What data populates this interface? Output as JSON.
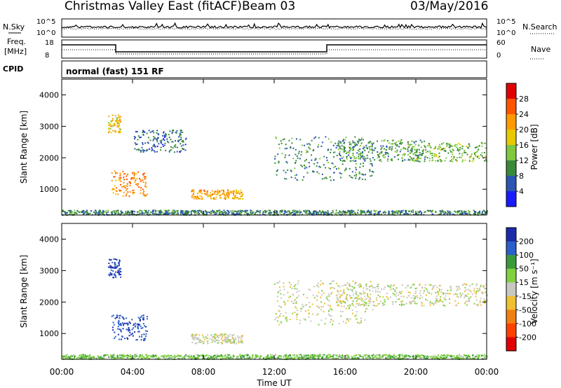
{
  "header": {
    "title": "Christmas Valley East (fitACF)",
    "beam": "Beam 03",
    "date": "03/May/2016"
  },
  "strip_panels": {
    "nsky_label": "N.Sky",
    "nsearch_label": "N.Search",
    "freq_label_1": "Freq.",
    "freq_label_2": "[MHz]",
    "nave_label": "Nave",
    "cpid_label": "CPID",
    "nsky_ticks": [
      "10^5",
      "10^0"
    ],
    "nsearch_ticks": [
      "10^5",
      "10^0"
    ],
    "freq_ticks": [
      "18",
      "8"
    ],
    "nave_ticks": [
      "60",
      "0"
    ],
    "cpid_text": "normal (fast) 151 RF"
  },
  "chart_data": [
    {
      "type": "heatmap",
      "name": "power",
      "ylabel": "Slant Range [km]",
      "yticks": [
        "4000",
        "3000",
        "2000",
        "1000"
      ],
      "ylim": [
        180,
        4500
      ],
      "xlim": [
        0,
        24
      ],
      "colorbar_label": "Power [dB]",
      "colorbar_ticks": [
        "28",
        "24",
        "20",
        "16",
        "12",
        "8",
        "4"
      ],
      "colorbar_colors": [
        "#e00000",
        "#ff5500",
        "#ff9900",
        "#e8c800",
        "#7fc840",
        "#3a8a3a",
        "#2a55b0",
        "#1a1aff"
      ],
      "regions": [
        {
          "t": [
            2.8,
            4.8
          ],
          "r": [
            800,
            1600
          ],
          "v": 24
        },
        {
          "t": [
            7.3,
            10.2
          ],
          "r": [
            700,
            1000
          ],
          "v": 22
        },
        {
          "t": [
            2.6,
            3.3
          ],
          "r": [
            2800,
            3400
          ],
          "v": 20
        },
        {
          "t": [
            12.0,
            17.6
          ],
          "r": [
            1300,
            2700
          ],
          "v": 8
        },
        {
          "t": [
            15.5,
            20.5
          ],
          "r": [
            1900,
            2600
          ],
          "v": 10
        },
        {
          "t": [
            19.5,
            24.0
          ],
          "r": [
            1900,
            2500
          ],
          "v": 12
        },
        {
          "t": [
            4.0,
            7.0
          ],
          "r": [
            2200,
            2900
          ],
          "v": 6
        },
        {
          "t": [
            0.0,
            24.0
          ],
          "r": [
            200,
            350
          ],
          "v": 8
        }
      ]
    },
    {
      "type": "heatmap",
      "name": "velocity",
      "ylabel": "Slant Range [km]",
      "xlabel": "Time UT",
      "xticks": [
        "00:00",
        "04:00",
        "08:00",
        "12:00",
        "16:00",
        "20:00",
        "00:00"
      ],
      "yticks": [
        "4000",
        "3000",
        "2000",
        "1000"
      ],
      "ylim": [
        180,
        4500
      ],
      "xlim": [
        0,
        24
      ],
      "colorbar_label": "Velocity [m s⁻¹]",
      "colorbar_ticks": [
        "200",
        "100",
        "50",
        "15",
        "-15",
        "-50",
        "-100",
        "-200"
      ],
      "colorbar_colors": [
        "#1a2aaa",
        "#2a60c8",
        "#3a9a3a",
        "#80d040",
        "#c8c8c0",
        "#f0c030",
        "#f08010",
        "#ff4000",
        "#e00000"
      ],
      "regions": [
        {
          "t": [
            2.8,
            4.8
          ],
          "r": [
            800,
            1600
          ],
          "v": 150
        },
        {
          "t": [
            7.3,
            10.2
          ],
          "r": [
            700,
            1000
          ],
          "v": 0
        },
        {
          "t": [
            2.6,
            3.3
          ],
          "r": [
            2800,
            3400
          ],
          "v": 150
        },
        {
          "t": [
            12.0,
            17.6
          ],
          "r": [
            1300,
            2700
          ],
          "v": 0
        },
        {
          "t": [
            15.5,
            24.0
          ],
          "r": [
            1900,
            2600
          ],
          "v": 0
        },
        {
          "t": [
            0.0,
            24.0
          ],
          "r": [
            200,
            350
          ],
          "v": 40
        }
      ]
    }
  ],
  "colors": {
    "frame": "#000000"
  }
}
